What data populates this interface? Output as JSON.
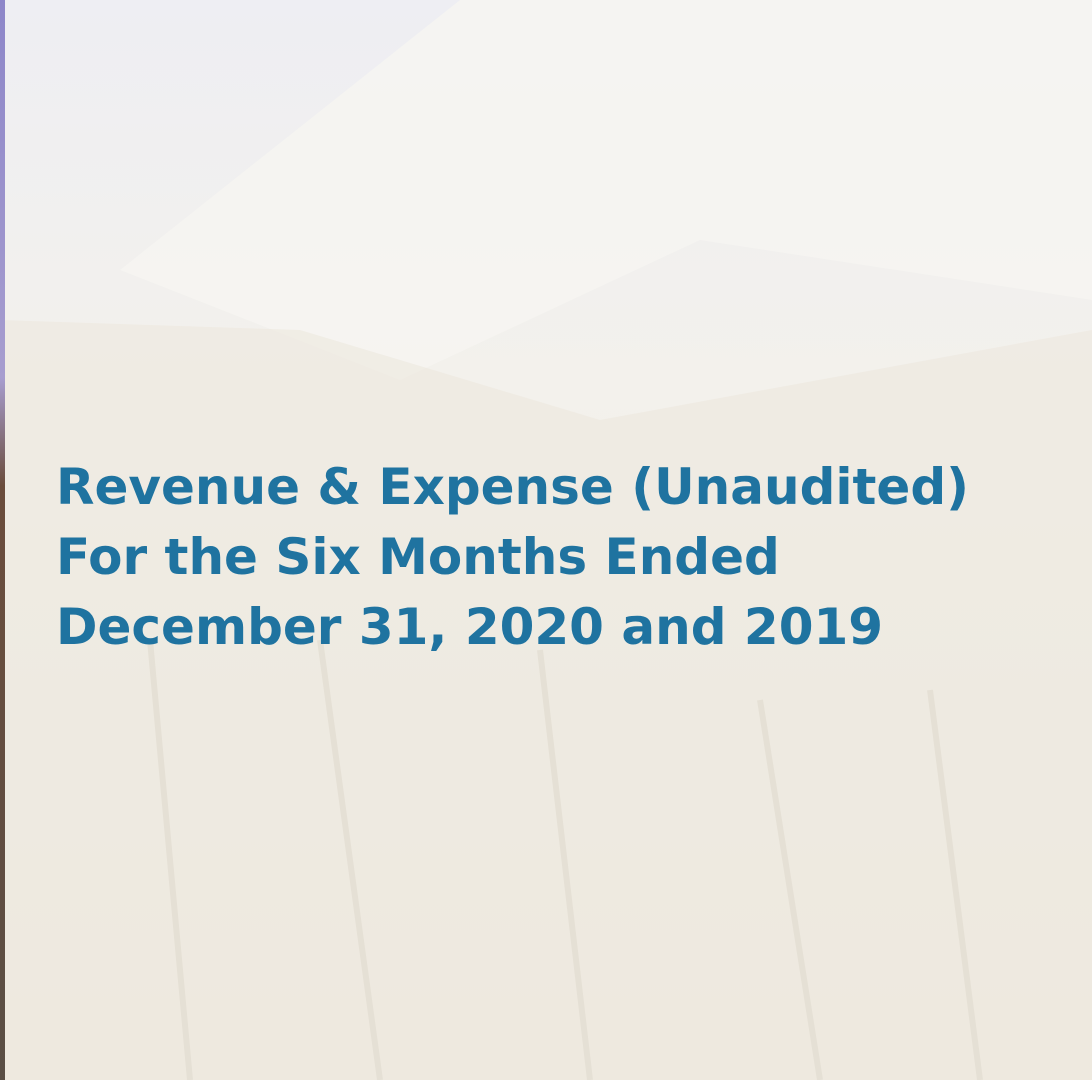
{
  "title": {
    "lines": [
      "Revenue & Expense (Unaudited)",
      "For the Six Months Ended",
      "December 31, 2020 and 2019"
    ]
  }
}
